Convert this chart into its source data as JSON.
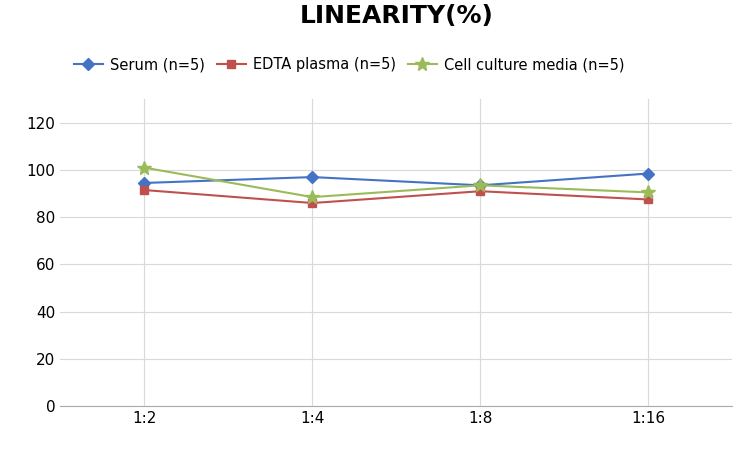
{
  "title": "LINEARITY(%)",
  "x_labels": [
    "1:2",
    "1:4",
    "1:8",
    "1:16"
  ],
  "x_values": [
    0,
    1,
    2,
    3
  ],
  "series": [
    {
      "label": "Serum (n=5)",
      "values": [
        94.5,
        97.0,
        93.5,
        98.5
      ],
      "color": "#4472C4",
      "marker": "D"
    },
    {
      "label": "EDTA plasma (n=5)",
      "values": [
        91.5,
        86.0,
        91.0,
        87.5
      ],
      "color": "#C0504D",
      "marker": "s"
    },
    {
      "label": "Cell culture media (n=5)",
      "values": [
        101.0,
        88.5,
        93.5,
        90.5
      ],
      "color": "#9BBB59",
      "marker": "*"
    }
  ],
  "ylim": [
    0,
    130
  ],
  "yticks": [
    0,
    20,
    40,
    60,
    80,
    100,
    120
  ],
  "title_fontsize": 18,
  "legend_fontsize": 10.5,
  "tick_fontsize": 11,
  "background_color": "#ffffff",
  "grid_color": "#d9d9d9"
}
